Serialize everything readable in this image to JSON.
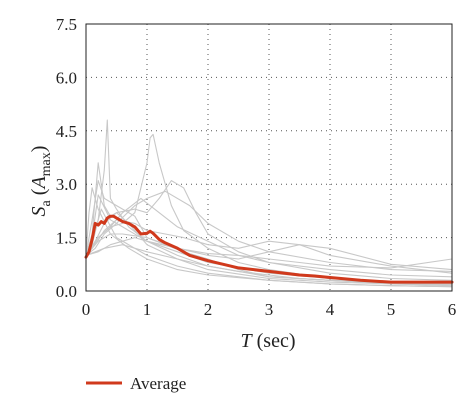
{
  "chart_data": {
    "type": "line",
    "title": "",
    "xlabel": "T (sec)",
    "xlabel_var": "T",
    "xlabel_unit": "(sec)",
    "ylabel": "Sa (Amax)",
    "ylabel_var": "S",
    "ylabel_sub": "a",
    "ylabel_inner_var": "A",
    "ylabel_inner_sub": "max",
    "xlim": [
      0,
      6
    ],
    "ylim": [
      0,
      7.5
    ],
    "xticks": [
      "0",
      "1",
      "2",
      "3",
      "4",
      "5",
      "6"
    ],
    "yticks": [
      "0.0",
      "1.5",
      "3.0",
      "4.5",
      "6.0",
      "7.5"
    ],
    "grid": "dotted",
    "legend_position": "bottom-left",
    "legend": [
      {
        "label": "Average",
        "color": "#d0391c"
      }
    ],
    "average": {
      "name": "Average",
      "color": "#d0391c",
      "x": [
        0,
        0.05,
        0.1,
        0.15,
        0.2,
        0.25,
        0.3,
        0.35,
        0.4,
        0.45,
        0.5,
        0.6,
        0.7,
        0.8,
        0.9,
        1.0,
        1.05,
        1.1,
        1.2,
        1.3,
        1.5,
        1.7,
        2.0,
        2.5,
        3.0,
        3.5,
        3.75,
        4.0,
        4.5,
        5.0,
        5.5,
        6.0
      ],
      "y": [
        0.95,
        1.1,
        1.45,
        1.9,
        1.85,
        1.95,
        1.9,
        2.05,
        2.1,
        2.1,
        2.05,
        1.95,
        1.9,
        1.8,
        1.6,
        1.62,
        1.68,
        1.62,
        1.45,
        1.35,
        1.2,
        1.0,
        0.85,
        0.65,
        0.55,
        0.45,
        0.42,
        0.38,
        0.3,
        0.25,
        0.25,
        0.25
      ]
    },
    "records": [
      {
        "x": [
          0,
          0.1,
          0.2,
          0.3,
          0.4,
          0.5,
          0.7,
          1.0,
          1.5,
          2.0,
          3.0,
          4.0,
          5.0,
          6.0
        ],
        "y": [
          1.0,
          1.6,
          3.6,
          2.4,
          2.1,
          2.2,
          1.9,
          1.3,
          0.9,
          0.6,
          0.35,
          0.25,
          0.2,
          0.18
        ]
      },
      {
        "x": [
          0,
          0.1,
          0.2,
          0.3,
          0.35,
          0.4,
          0.5,
          0.7,
          1.0,
          1.5,
          2.0,
          3.0,
          4.0,
          5.0,
          6.0
        ],
        "y": [
          1.0,
          1.3,
          2.0,
          3.4,
          4.8,
          2.6,
          2.3,
          1.8,
          1.4,
          1.0,
          0.7,
          0.4,
          0.3,
          0.22,
          0.2
        ]
      },
      {
        "x": [
          0,
          0.1,
          0.2,
          0.4,
          0.6,
          0.8,
          1.0,
          1.05,
          1.1,
          1.2,
          1.4,
          1.6,
          2.0,
          2.5,
          3.0,
          4.0,
          5.0,
          6.0
        ],
        "y": [
          1.0,
          1.2,
          1.5,
          1.8,
          1.9,
          2.2,
          3.6,
          4.3,
          4.4,
          3.6,
          2.4,
          1.7,
          1.2,
          0.8,
          0.6,
          0.35,
          0.25,
          0.2
        ]
      },
      {
        "x": [
          0,
          0.15,
          0.3,
          0.5,
          0.8,
          1.0,
          1.2,
          1.4,
          1.6,
          1.8,
          2.0,
          2.5,
          3.0,
          4.0,
          5.0,
          6.0
        ],
        "y": [
          1.0,
          1.4,
          1.9,
          2.2,
          2.3,
          2.2,
          2.6,
          3.1,
          2.9,
          2.2,
          1.6,
          1.1,
          0.8,
          0.5,
          0.35,
          0.3
        ]
      },
      {
        "x": [
          0,
          0.1,
          0.2,
          0.3,
          0.5,
          0.8,
          1.0,
          1.3,
          1.6,
          2.0,
          2.5,
          3.0,
          4.0,
          5.0,
          6.0
        ],
        "y": [
          1.0,
          2.0,
          3.1,
          2.6,
          2.4,
          2.1,
          1.5,
          1.3,
          1.1,
          0.9,
          0.6,
          0.4,
          0.3,
          0.2,
          0.15
        ]
      },
      {
        "x": [
          0,
          0.15,
          0.3,
          0.5,
          0.8,
          1.0,
          1.3,
          1.6,
          2.0,
          2.5,
          3.0,
          3.5,
          4.0,
          5.0,
          6.0
        ],
        "y": [
          1.0,
          1.3,
          1.7,
          2.0,
          1.9,
          1.7,
          1.6,
          1.5,
          1.3,
          1.2,
          1.4,
          1.3,
          1.0,
          0.7,
          0.5
        ]
      },
      {
        "x": [
          0,
          0.1,
          0.2,
          0.4,
          0.6,
          1.0,
          1.5,
          2.0,
          2.5,
          3.0,
          3.5,
          4.0,
          5.0,
          6.0
        ],
        "y": [
          1.0,
          1.5,
          2.7,
          2.0,
          1.8,
          1.4,
          1.2,
          1.05,
          1.0,
          0.9,
          0.8,
          0.7,
          0.65,
          0.9
        ]
      },
      {
        "x": [
          0,
          0.2,
          0.4,
          0.6,
          1.0,
          1.5,
          2.0,
          2.5,
          3.0,
          3.5,
          4.0,
          5.0,
          6.0
        ],
        "y": [
          1.0,
          1.4,
          1.6,
          1.6,
          1.5,
          1.2,
          1.0,
          0.9,
          1.1,
          1.3,
          1.2,
          0.75,
          0.6
        ]
      },
      {
        "x": [
          0,
          0.1,
          0.25,
          0.5,
          0.8,
          1.0,
          1.5,
          2.0,
          3.0,
          4.0,
          5.0,
          6.0
        ],
        "y": [
          1.0,
          1.4,
          2.3,
          1.5,
          1.2,
          1.0,
          0.7,
          0.5,
          0.3,
          0.2,
          0.15,
          0.12
        ]
      },
      {
        "x": [
          0,
          0.2,
          0.4,
          0.6,
          0.8,
          1.0,
          1.5,
          2.0,
          3.0,
          4.0,
          5.0,
          6.0
        ],
        "y": [
          1.0,
          1.1,
          1.3,
          1.4,
          1.5,
          1.4,
          1.1,
          0.8,
          0.5,
          0.35,
          0.25,
          0.2
        ]
      },
      {
        "x": [
          0,
          0.05,
          0.1,
          0.2,
          0.4,
          0.7,
          1.0,
          1.5,
          2.0,
          3.0,
          4.0,
          5.0,
          6.0
        ],
        "y": [
          1.0,
          2.2,
          2.9,
          2.3,
          1.6,
          1.2,
          0.9,
          0.6,
          0.45,
          0.3,
          0.2,
          0.15,
          0.12
        ]
      },
      {
        "x": [
          0,
          0.2,
          0.4,
          0.6,
          0.9,
          1.2,
          1.5,
          2.0,
          2.5,
          3.0,
          4.0,
          5.0,
          6.0
        ],
        "y": [
          1.0,
          1.5,
          1.8,
          2.2,
          2.6,
          2.2,
          1.8,
          1.4,
          1.0,
          0.8,
          0.6,
          0.45,
          0.4
        ]
      },
      {
        "x": [
          0,
          0.15,
          0.3,
          0.5,
          0.8,
          1.0,
          1.3,
          1.7,
          2.0,
          2.5,
          3.0,
          4.0,
          5.0,
          6.0
        ],
        "y": [
          1.0,
          1.2,
          1.6,
          1.9,
          2.4,
          2.6,
          2.8,
          2.4,
          1.9,
          1.4,
          1.1,
          0.8,
          0.6,
          0.55
        ]
      },
      {
        "x": [
          0,
          0.3,
          0.6,
          1.0,
          1.5,
          2.0,
          2.5,
          3.0,
          3.5,
          4.0,
          5.0,
          6.0
        ],
        "y": [
          1.0,
          1.2,
          1.3,
          1.1,
          0.9,
          0.7,
          0.55,
          0.45,
          0.35,
          0.3,
          0.25,
          0.2
        ]
      }
    ]
  }
}
